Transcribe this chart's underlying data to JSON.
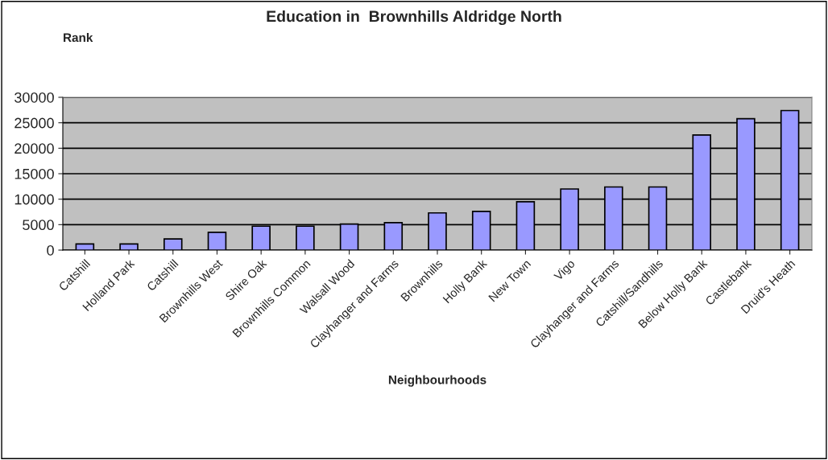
{
  "chart_data": {
    "type": "bar",
    "title": "Education in  Brownhills Aldridge North",
    "ylabel": "Rank",
    "xlabel": "Neighbourhoods",
    "categories": [
      "Catshill",
      "Holland Park",
      "Catshill",
      "Brownhills West",
      "Shire Oak",
      "Brownhills Common",
      "Walsall Wood",
      "Clayhanger and Farms",
      "Brownhills",
      "Holly Bank",
      "New Town",
      "Vigo",
      "Clayhanger and Farms",
      "Catshill/Sandhills",
      "Below Holly Bank",
      "Castlebank",
      "Druid's Heath"
    ],
    "values": [
      1200,
      1200,
      2200,
      3500,
      4700,
      4700,
      5100,
      5400,
      7300,
      7600,
      9500,
      12000,
      12400,
      12400,
      22600,
      25800,
      27400
    ],
    "color": "#9999ff",
    "ylim": [
      0,
      30000
    ],
    "yticks": [
      0,
      5000,
      10000,
      15000,
      20000,
      25000,
      30000
    ],
    "grid": "y",
    "legend": false
  }
}
